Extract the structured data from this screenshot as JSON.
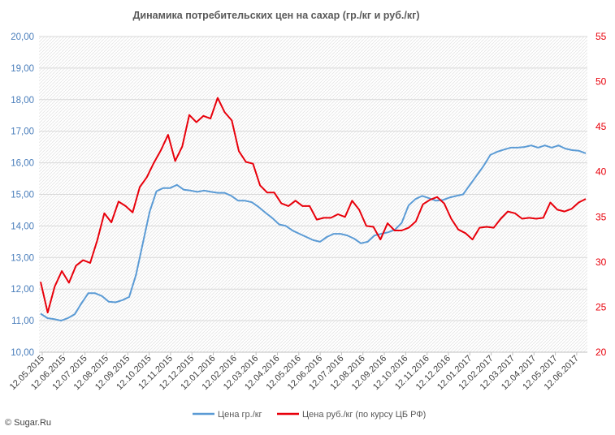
{
  "chart_data": {
    "type": "line",
    "title": "Динамика потребительских цен на сахар (гр./кг и руб./кг)",
    "xlabel": "",
    "ylabel": "",
    "x_ticks": [
      "12.05.2015",
      "12.06.2015",
      "12.07.2015",
      "12.08.2015",
      "12.09.2015",
      "12.10.2015",
      "12.11.2015",
      "12.12.2015",
      "12.01.2016",
      "12.02.2016",
      "12.03.2016",
      "12.04.2016",
      "12.05.2016",
      "12.06.2016",
      "12.07.2016",
      "12.08.2016",
      "12.09.2016",
      "12.10.2016",
      "12.11.2016",
      "12.12.2016",
      "12.01.2017",
      "12.02.2017",
      "12.03.2017",
      "12.04.2017",
      "12.05.2017",
      "12.06.2017"
    ],
    "y_left": {
      "ylim": [
        10,
        20
      ],
      "ticks": [
        "10,00",
        "11,00",
        "12,00",
        "13,00",
        "14,00",
        "15,00",
        "16,00",
        "17,00",
        "18,00",
        "19,00",
        "20,00"
      ]
    },
    "y_right": {
      "ylim": [
        20,
        55
      ],
      "ticks": [
        "20",
        "25",
        "30",
        "35",
        "40",
        "45",
        "50",
        "55"
      ]
    },
    "grid": true,
    "legend_position": "bottom",
    "series": [
      {
        "name": "Цена гр./кг",
        "axis": "left",
        "color": "#5b9bd5",
        "values": [
          11.22,
          11.08,
          11.05,
          11.0,
          11.08,
          11.2,
          11.55,
          11.87,
          11.87,
          11.78,
          11.6,
          11.58,
          11.65,
          11.75,
          12.45,
          13.45,
          14.45,
          15.1,
          15.2,
          15.2,
          15.3,
          15.15,
          15.12,
          15.08,
          15.12,
          15.08,
          15.05,
          15.05,
          14.95,
          14.8,
          14.8,
          14.75,
          14.6,
          14.42,
          14.25,
          14.05,
          14.0,
          13.85,
          13.75,
          13.65,
          13.55,
          13.5,
          13.65,
          13.75,
          13.75,
          13.7,
          13.6,
          13.45,
          13.5,
          13.7,
          13.75,
          13.8,
          13.88,
          14.1,
          14.65,
          14.85,
          14.95,
          14.88,
          14.8,
          14.82,
          14.9,
          14.95,
          15.0,
          15.3,
          15.6,
          15.9,
          16.25,
          16.35,
          16.42,
          16.48,
          16.48,
          16.5,
          16.55,
          16.48,
          16.55,
          16.48,
          16.55,
          16.45,
          16.4,
          16.38,
          16.3
        ]
      },
      {
        "name": "Цена руб./кг (по курсу ЦБ РФ)",
        "axis": "right",
        "color": "#e8000b",
        "values": [
          27.8,
          24.4,
          27.3,
          29.0,
          27.7,
          29.6,
          30.2,
          29.9,
          32.4,
          35.4,
          34.4,
          36.7,
          36.2,
          35.5,
          38.3,
          39.4,
          41.0,
          42.4,
          44.1,
          41.2,
          42.8,
          46.3,
          45.5,
          46.2,
          45.9,
          48.2,
          46.6,
          45.7,
          42.3,
          41.1,
          40.9,
          38.5,
          37.7,
          37.7,
          36.5,
          36.2,
          36.8,
          36.2,
          36.2,
          34.7,
          34.9,
          34.9,
          35.3,
          35.0,
          36.8,
          35.8,
          34.0,
          33.9,
          32.5,
          34.3,
          33.5,
          33.5,
          33.8,
          34.5,
          36.4,
          36.9,
          37.2,
          36.5,
          34.8,
          33.6,
          33.2,
          32.5,
          33.8,
          33.9,
          33.8,
          34.8,
          35.6,
          35.4,
          34.8,
          34.9,
          34.8,
          34.9,
          36.6,
          35.8,
          35.6,
          35.9,
          36.6,
          37.0
        ]
      }
    ]
  },
  "footer": {
    "source": "© Sugar.Ru"
  },
  "colors": {
    "grid": "#d9d9d9",
    "axis_left_text": "#4a7ebb",
    "axis_right_text": "#e8000b",
    "title": "#595959"
  }
}
